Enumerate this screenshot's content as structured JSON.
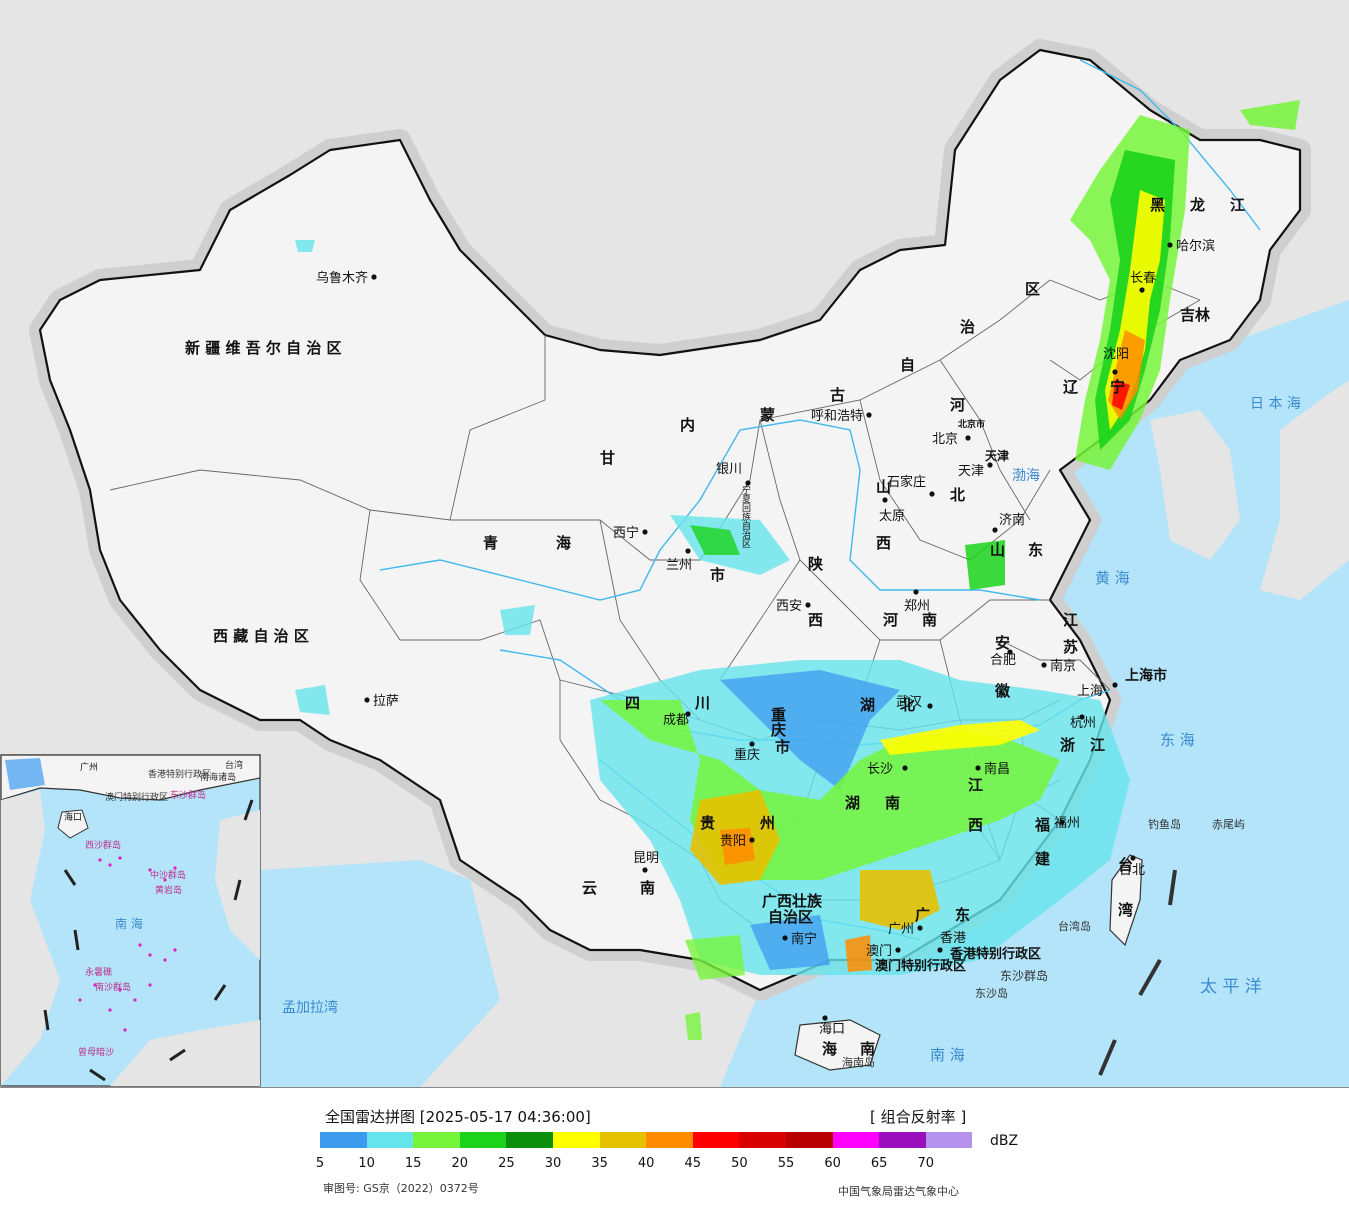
{
  "legend": {
    "title": "全国雷达拼图 [2025-05-17 04:36:00]",
    "product": "[ 组合反射率 ]",
    "unit": "dBZ",
    "approval": "审图号: GS京（2022）0372号",
    "credit": "中国气象局雷达气象中心",
    "colors": [
      "#3c9bef",
      "#66e4ec",
      "#77f53b",
      "#1bd31b",
      "#0c8f0d",
      "#ffff00",
      "#e6c100",
      "#ff8c00",
      "#ff0000",
      "#d80000",
      "#b80000",
      "#ff00ff",
      "#9a0fbd",
      "#b592ee"
    ],
    "ticks": [
      "5",
      "10",
      "15",
      "20",
      "25",
      "30",
      "35",
      "40",
      "45",
      "50",
      "55",
      "60",
      "65",
      "70"
    ]
  },
  "provinces": [
    {
      "id": "xinjiang",
      "label": "新 疆 维 吾 尔 自 治 区"
    },
    {
      "id": "xizang",
      "label": "西 藏 自 治 区"
    },
    {
      "id": "qinghai-1",
      "label": "青"
    },
    {
      "id": "qinghai-2",
      "label": "海"
    },
    {
      "id": "gansu",
      "label": "甘"
    },
    {
      "id": "neimenggu-1",
      "label": "内"
    },
    {
      "id": "neimenggu-2",
      "label": "蒙"
    },
    {
      "id": "neimenggu-3",
      "label": "古"
    },
    {
      "id": "neimenggu-4",
      "label": "自"
    },
    {
      "id": "neimenggu-5",
      "label": "治"
    },
    {
      "id": "neimenggu-6",
      "label": "区"
    },
    {
      "id": "heilongjiang-1",
      "label": "黑"
    },
    {
      "id": "heilongjiang-2",
      "label": "龙"
    },
    {
      "id": "heilongjiang-3",
      "label": "江"
    },
    {
      "id": "jilin-1",
      "label": "吉"
    },
    {
      "id": "jilin-2",
      "label": "林"
    },
    {
      "id": "liaoning-1",
      "label": "辽"
    },
    {
      "id": "liaoning-2",
      "label": "宁"
    },
    {
      "id": "hebei-1",
      "label": "河"
    },
    {
      "id": "hebei-2",
      "label": "北"
    },
    {
      "id": "shanxi-1",
      "label": "山"
    },
    {
      "id": "shanxi-2",
      "label": "西"
    },
    {
      "id": "shandong-1",
      "label": "山"
    },
    {
      "id": "shandong-2",
      "label": "东"
    },
    {
      "id": "shaanxi-1",
      "label": "陕"
    },
    {
      "id": "shaanxi-2",
      "label": "西"
    },
    {
      "id": "henan-1",
      "label": "河"
    },
    {
      "id": "henan-2",
      "label": "南"
    },
    {
      "id": "jiangsu-1",
      "label": "江"
    },
    {
      "id": "jiangsu-2",
      "label": "苏"
    },
    {
      "id": "anhui-1",
      "label": "安"
    },
    {
      "id": "anhui-2",
      "label": "徽"
    },
    {
      "id": "sichuan-1",
      "label": "四"
    },
    {
      "id": "sichuan-2",
      "label": "川"
    },
    {
      "id": "hubei-1",
      "label": "湖"
    },
    {
      "id": "hubei-2",
      "label": "北"
    },
    {
      "id": "zhejiang-1",
      "label": "浙"
    },
    {
      "id": "zhejiang-2",
      "label": "江"
    },
    {
      "id": "hunan-1",
      "label": "湖"
    },
    {
      "id": "hunan-2",
      "label": "南"
    },
    {
      "id": "jiangxi-1",
      "label": "江"
    },
    {
      "id": "jiangxi-2",
      "label": "西"
    },
    {
      "id": "guizhou-1",
      "label": "贵"
    },
    {
      "id": "guizhou-2",
      "label": "州"
    },
    {
      "id": "fujian-1",
      "label": "福"
    },
    {
      "id": "fujian-2",
      "label": "建"
    },
    {
      "id": "yunnan-1",
      "label": "云"
    },
    {
      "id": "yunnan-2",
      "label": "南"
    },
    {
      "id": "guangxi-1",
      "label": "广西壮族"
    },
    {
      "id": "guangxi-2",
      "label": "自治区"
    },
    {
      "id": "guangdong-1",
      "label": "广"
    },
    {
      "id": "guangdong-2",
      "label": "东"
    },
    {
      "id": "hainan-1",
      "label": "海"
    },
    {
      "id": "hainan-2",
      "label": "南"
    },
    {
      "id": "taiwan-1",
      "label": "台"
    },
    {
      "id": "taiwan-2",
      "label": "湾"
    },
    {
      "id": "chongqing-1",
      "label": "重"
    },
    {
      "id": "chongqing-2",
      "label": "庆"
    },
    {
      "id": "chongqing-3",
      "label": "市"
    },
    {
      "id": "shanghai",
      "label": "上海市"
    },
    {
      "id": "tianjin",
      "label": "天津"
    },
    {
      "id": "beijing-city",
      "label": "北京市"
    },
    {
      "id": "hongkong",
      "label": "香港特别行政区"
    },
    {
      "id": "macau",
      "label": "澳门特别行政区"
    },
    {
      "id": "ningxia",
      "label": "宁夏回族自治区"
    },
    {
      "id": "gansu-city",
      "label": "市"
    }
  ],
  "cities": [
    {
      "id": "urumqi",
      "label": "乌鲁木齐"
    },
    {
      "id": "lhasa",
      "label": "拉萨"
    },
    {
      "id": "xining",
      "label": "西宁"
    },
    {
      "id": "lanzhou",
      "label": "兰州"
    },
    {
      "id": "yinchuan",
      "label": "银川"
    },
    {
      "id": "hohhot",
      "label": "呼和浩特"
    },
    {
      "id": "beijing",
      "label": "北京"
    },
    {
      "id": "tianjin-city",
      "label": "天津"
    },
    {
      "id": "shijiazhuang",
      "label": "石家庄"
    },
    {
      "id": "taiyuan",
      "label": "太原"
    },
    {
      "id": "jinan",
      "label": "济南"
    },
    {
      "id": "zhengzhou",
      "label": "郑州"
    },
    {
      "id": "xian",
      "label": "西安"
    },
    {
      "id": "hefei",
      "label": "合肥"
    },
    {
      "id": "nanjing",
      "label": "南京"
    },
    {
      "id": "shanghai-city",
      "label": "上海"
    },
    {
      "id": "hangzhou",
      "label": "杭州"
    },
    {
      "id": "wuhan",
      "label": "武汉"
    },
    {
      "id": "chengdu",
      "label": "成都"
    },
    {
      "id": "chongqing-city",
      "label": "重庆"
    },
    {
      "id": "changsha",
      "label": "长沙"
    },
    {
      "id": "nanchang",
      "label": "南昌"
    },
    {
      "id": "guiyang",
      "label": "贵阳"
    },
    {
      "id": "fuzhou",
      "label": "福州"
    },
    {
      "id": "kunming",
      "label": "昆明"
    },
    {
      "id": "nanning",
      "label": "南宁"
    },
    {
      "id": "guangzhou",
      "label": "广州"
    },
    {
      "id": "macau-city",
      "label": "澳门"
    },
    {
      "id": "hongkong-city",
      "label": "香港"
    },
    {
      "id": "haikou",
      "label": "海口"
    },
    {
      "id": "taipei",
      "label": "台北"
    },
    {
      "id": "shenyang",
      "label": "沈阳"
    },
    {
      "id": "changchun",
      "label": "长春"
    },
    {
      "id": "harbin",
      "label": "哈尔滨"
    }
  ],
  "seas": [
    {
      "id": "bohai",
      "label": "渤海"
    },
    {
      "id": "huanghai",
      "label": "黄 海"
    },
    {
      "id": "donghai",
      "label": "东 海"
    },
    {
      "id": "nanhai",
      "label": "南 海"
    },
    {
      "id": "taipingyang",
      "label": "太 平 洋"
    },
    {
      "id": "ribenhai",
      "label": "日 本 海"
    },
    {
      "id": "mengjialawan",
      "label": "孟加拉湾"
    }
  ],
  "islands": [
    {
      "id": "diaoyudao",
      "label": "钓鱼岛"
    },
    {
      "id": "chiweiyu",
      "label": "赤尾屿"
    },
    {
      "id": "taiwandao",
      "label": "台湾岛"
    },
    {
      "id": "dongshaqundao",
      "label": "东沙群岛"
    },
    {
      "id": "dongshadao",
      "label": "东沙岛"
    },
    {
      "id": "hainandao",
      "label": "海南岛"
    }
  ],
  "inset": {
    "nanhai": "南 海",
    "nanhai_zhudao": "南海诸岛",
    "zhongsha": "中沙群岛",
    "huangyandao": "黄岩岛",
    "xisha": "西沙群岛",
    "nansha": "南沙群岛",
    "zengmuansha": "曾母暗沙",
    "yongshujiao": "永暑礁",
    "haikou": "海口",
    "guangzhou": "广州",
    "hongkong": "香港特别行政区",
    "macau": "澳门特别行政区",
    "dongsha": "东沙群岛",
    "taiwan": "台湾"
  }
}
